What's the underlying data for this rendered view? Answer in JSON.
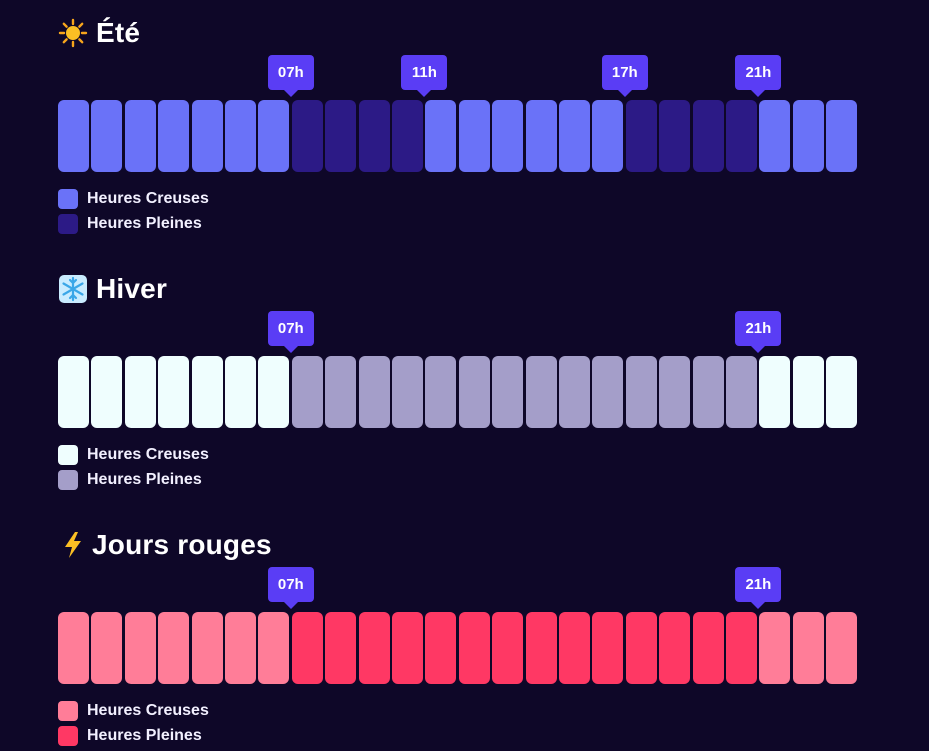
{
  "sections": [
    {
      "title": "Été",
      "icon": "sun-icon",
      "markers": [
        {
          "label": "07h",
          "hour": 7
        },
        {
          "label": "11h",
          "hour": 11
        },
        {
          "label": "17h",
          "hour": 17
        },
        {
          "label": "21h",
          "hour": 21
        }
      ],
      "colors": {
        "creuses": "#6a72f8",
        "pleines": "#2c1a86"
      },
      "hours": [
        "C",
        "C",
        "C",
        "C",
        "C",
        "C",
        "C",
        "P",
        "P",
        "P",
        "P",
        "C",
        "C",
        "C",
        "C",
        "C",
        "C",
        "P",
        "P",
        "P",
        "P",
        "C",
        "C",
        "C"
      ],
      "legend": [
        {
          "label": "Heures Creuses",
          "key": "creuses"
        },
        {
          "label": "Heures Pleines",
          "key": "pleines"
        }
      ]
    },
    {
      "title": "Hiver",
      "icon": "snowflake-icon",
      "markers": [
        {
          "label": "07h",
          "hour": 7
        },
        {
          "label": "21h",
          "hour": 21
        }
      ],
      "colors": {
        "creuses": "#effefe",
        "pleines": "#a49ec9"
      },
      "hours": [
        "C",
        "C",
        "C",
        "C",
        "C",
        "C",
        "C",
        "P",
        "P",
        "P",
        "P",
        "P",
        "P",
        "P",
        "P",
        "P",
        "P",
        "P",
        "P",
        "P",
        "P",
        "C",
        "C",
        "C"
      ],
      "legend": [
        {
          "label": "Heures Creuses",
          "key": "creuses"
        },
        {
          "label": "Heures Pleines",
          "key": "pleines"
        }
      ]
    },
    {
      "title": "Jours rouges",
      "icon": "lightning-icon",
      "markers": [
        {
          "label": "07h",
          "hour": 7
        },
        {
          "label": "21h",
          "hour": 21
        }
      ],
      "colors": {
        "creuses": "#ff7d98",
        "pleines": "#ff3864"
      },
      "hours": [
        "C",
        "C",
        "C",
        "C",
        "C",
        "C",
        "C",
        "P",
        "P",
        "P",
        "P",
        "P",
        "P",
        "P",
        "P",
        "P",
        "P",
        "P",
        "P",
        "P",
        "P",
        "C",
        "C",
        "C"
      ],
      "legend": [
        {
          "label": "Heures Creuses",
          "key": "creuses"
        },
        {
          "label": "Heures Pleines",
          "key": "pleines"
        }
      ]
    }
  ]
}
